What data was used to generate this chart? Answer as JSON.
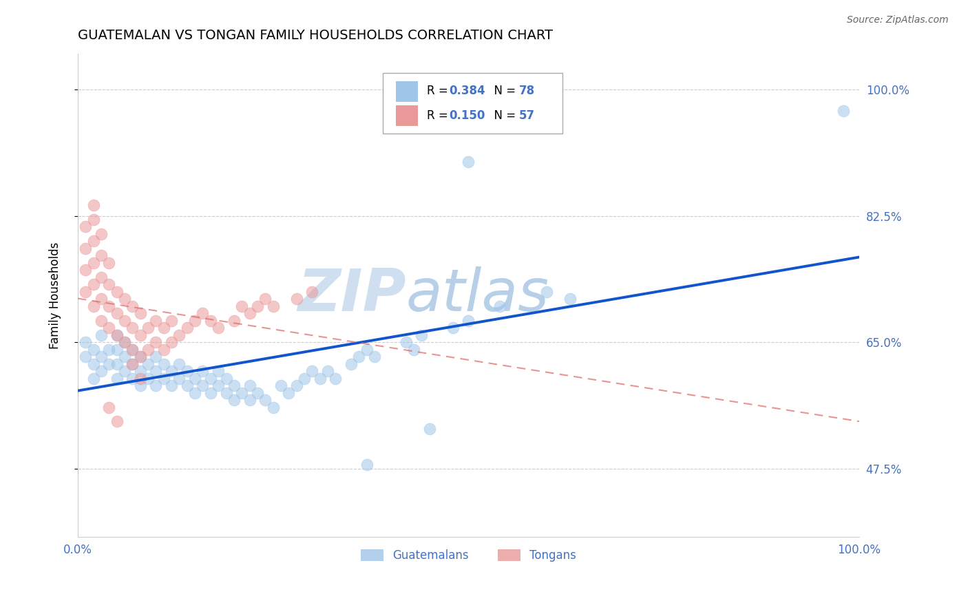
{
  "title": "GUATEMALAN VS TONGAN FAMILY HOUSEHOLDS CORRELATION CHART",
  "source": "Source: ZipAtlas.com",
  "ylabel": "Family Households",
  "yticks": [
    "47.5%",
    "65.0%",
    "82.5%",
    "100.0%"
  ],
  "ytick_vals": [
    0.475,
    0.65,
    0.825,
    1.0
  ],
  "xlim": [
    0.0,
    1.0
  ],
  "ylim": [
    0.38,
    1.05
  ],
  "legend_blue_r": "R = 0.384",
  "legend_blue_n": "N = 78",
  "legend_pink_r": "R = 0.150",
  "legend_pink_n": "N = 57",
  "legend_label_blue": "Guatemalans",
  "legend_label_pink": "Tongans",
  "blue_color": "#9fc5e8",
  "pink_color": "#ea9999",
  "line_blue": "#1155cc",
  "line_pink_dashed": "#e06666",
  "watermark_zip": "ZIP",
  "watermark_atlas": "atlas",
  "blue_x": [
    0.01,
    0.01,
    0.02,
    0.02,
    0.02,
    0.03,
    0.03,
    0.03,
    0.04,
    0.04,
    0.05,
    0.05,
    0.05,
    0.05,
    0.06,
    0.06,
    0.06,
    0.07,
    0.07,
    0.07,
    0.08,
    0.08,
    0.08,
    0.09,
    0.09,
    0.1,
    0.1,
    0.1,
    0.11,
    0.11,
    0.12,
    0.12,
    0.13,
    0.13,
    0.14,
    0.14,
    0.15,
    0.15,
    0.16,
    0.16,
    0.17,
    0.17,
    0.18,
    0.18,
    0.19,
    0.19,
    0.2,
    0.2,
    0.21,
    0.22,
    0.22,
    0.23,
    0.24,
    0.25,
    0.26,
    0.27,
    0.28,
    0.29,
    0.3,
    0.31,
    0.32,
    0.33,
    0.35,
    0.36,
    0.37,
    0.38,
    0.42,
    0.43,
    0.44,
    0.45,
    0.48,
    0.5,
    0.54,
    0.6,
    0.63,
    0.5,
    0.98,
    0.37
  ],
  "blue_y": [
    0.63,
    0.65,
    0.6,
    0.62,
    0.64,
    0.61,
    0.63,
    0.66,
    0.62,
    0.64,
    0.6,
    0.62,
    0.64,
    0.66,
    0.61,
    0.63,
    0.65,
    0.6,
    0.62,
    0.64,
    0.59,
    0.61,
    0.63,
    0.6,
    0.62,
    0.59,
    0.61,
    0.63,
    0.6,
    0.62,
    0.59,
    0.61,
    0.6,
    0.62,
    0.59,
    0.61,
    0.58,
    0.6,
    0.59,
    0.61,
    0.58,
    0.6,
    0.59,
    0.61,
    0.58,
    0.6,
    0.57,
    0.59,
    0.58,
    0.57,
    0.59,
    0.58,
    0.57,
    0.56,
    0.59,
    0.58,
    0.59,
    0.6,
    0.61,
    0.6,
    0.61,
    0.6,
    0.62,
    0.63,
    0.64,
    0.63,
    0.65,
    0.64,
    0.66,
    0.53,
    0.67,
    0.68,
    0.7,
    0.72,
    0.71,
    0.9,
    0.97,
    0.48
  ],
  "pink_x": [
    0.01,
    0.01,
    0.01,
    0.01,
    0.02,
    0.02,
    0.02,
    0.02,
    0.02,
    0.02,
    0.03,
    0.03,
    0.03,
    0.03,
    0.03,
    0.04,
    0.04,
    0.04,
    0.04,
    0.05,
    0.05,
    0.05,
    0.06,
    0.06,
    0.06,
    0.07,
    0.07,
    0.07,
    0.08,
    0.08,
    0.08,
    0.09,
    0.09,
    0.1,
    0.1,
    0.11,
    0.11,
    0.12,
    0.12,
    0.13,
    0.14,
    0.15,
    0.16,
    0.17,
    0.18,
    0.2,
    0.21,
    0.22,
    0.23,
    0.24,
    0.25,
    0.28,
    0.3,
    0.07,
    0.08,
    0.04,
    0.05
  ],
  "pink_y": [
    0.72,
    0.75,
    0.78,
    0.81,
    0.7,
    0.73,
    0.76,
    0.79,
    0.82,
    0.84,
    0.68,
    0.71,
    0.74,
    0.77,
    0.8,
    0.67,
    0.7,
    0.73,
    0.76,
    0.66,
    0.69,
    0.72,
    0.65,
    0.68,
    0.71,
    0.64,
    0.67,
    0.7,
    0.63,
    0.66,
    0.69,
    0.64,
    0.67,
    0.65,
    0.68,
    0.64,
    0.67,
    0.65,
    0.68,
    0.66,
    0.67,
    0.68,
    0.69,
    0.68,
    0.67,
    0.68,
    0.7,
    0.69,
    0.7,
    0.71,
    0.7,
    0.71,
    0.72,
    0.62,
    0.6,
    0.56,
    0.54
  ]
}
